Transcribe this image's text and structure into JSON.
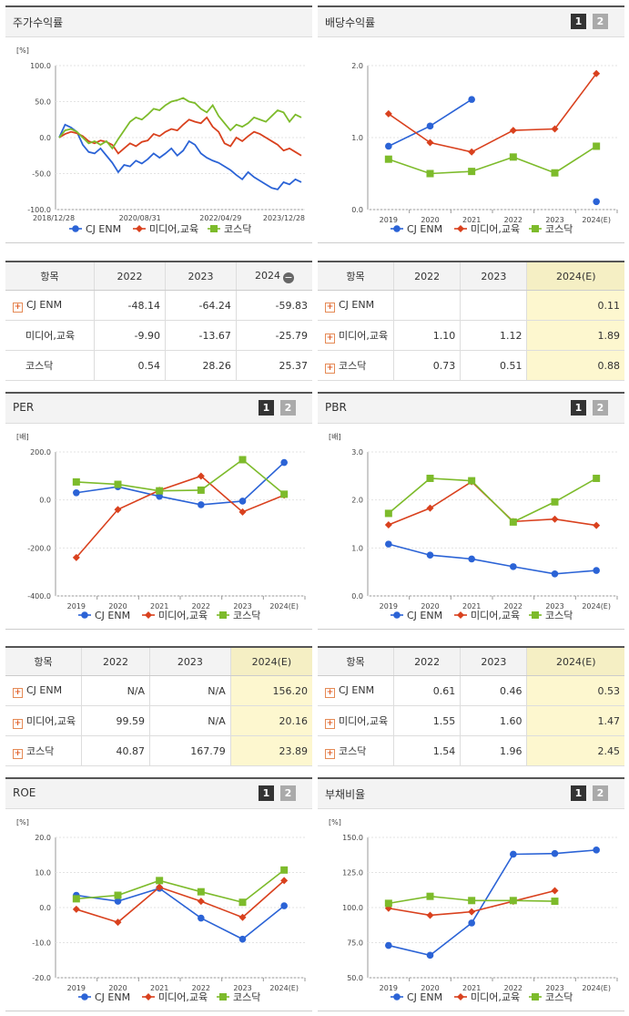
{
  "colors": {
    "cj": "#2b63d6",
    "media": "#d9411e",
    "kosdaq": "#7dbb2b"
  },
  "panels": {
    "stock_return": {
      "title": "주가수익률",
      "unit": "[%]"
    },
    "dividend": {
      "title": "배당수익률",
      "pages": [
        "1",
        "2"
      ]
    },
    "per": {
      "title": "PER",
      "unit": "[배]",
      "pages": [
        "1",
        "2"
      ]
    },
    "pbr": {
      "title": "PBR",
      "unit": "[배]",
      "pages": [
        "1",
        "2"
      ]
    },
    "roe": {
      "title": "ROE",
      "unit": "[%]",
      "pages": [
        "1",
        "2"
      ]
    },
    "debt": {
      "title": "부채비율",
      "unit": "[%]",
      "pages": [
        "1",
        "2"
      ]
    }
  },
  "legend": [
    "CJ ENM",
    "미디어,교육",
    "코스닥"
  ],
  "chart_data": [
    {
      "id": "stock_return",
      "type": "line",
      "x_ticks": [
        "2018/12/28",
        "2020/08/31",
        "2022/04/29",
        "2023/12/28"
      ],
      "y_ticks": [
        "100.0",
        "50.0",
        "0.0",
        "-50.0",
        "-100.0"
      ],
      "ylim": [
        -100,
        100
      ],
      "series": [
        {
          "name": "CJ ENM",
          "values": [
            0,
            18,
            14,
            8,
            -10,
            -20,
            -22,
            -15,
            -25,
            -35,
            -48,
            -38,
            -40,
            -32,
            -36,
            -30,
            -22,
            -28,
            -22,
            -15,
            -25,
            -18,
            -5,
            -10,
            -22,
            -28,
            -32,
            -35,
            -40,
            -45,
            -52,
            -58,
            -48,
            -55,
            -60,
            -65,
            -70,
            -72,
            -62,
            -65,
            -58,
            -62
          ]
        },
        {
          "name": "미디어,교육",
          "values": [
            0,
            5,
            8,
            6,
            2,
            -5,
            -8,
            -4,
            -6,
            -10,
            -22,
            -15,
            -8,
            -12,
            -6,
            -4,
            5,
            2,
            8,
            12,
            10,
            18,
            25,
            22,
            20,
            28,
            15,
            8,
            -8,
            -12,
            0,
            -5,
            2,
            8,
            5,
            0,
            -5,
            -10,
            -18,
            -15,
            -20,
            -25
          ]
        },
        {
          "name": "코스닥",
          "values": [
            0,
            10,
            12,
            8,
            0,
            -8,
            -5,
            -10,
            -5,
            -15,
            -2,
            10,
            22,
            28,
            25,
            32,
            40,
            38,
            45,
            50,
            52,
            55,
            50,
            48,
            40,
            35,
            45,
            30,
            20,
            10,
            18,
            15,
            20,
            28,
            25,
            22,
            30,
            38,
            35,
            22,
            32,
            28
          ]
        }
      ]
    },
    {
      "id": "dividend",
      "type": "line",
      "categories": [
        "2019",
        "2020",
        "2021",
        "2022",
        "2023",
        "2024(E)"
      ],
      "y_ticks": [
        "2.0",
        "1.0",
        "0.0"
      ],
      "ylim": [
        0,
        2
      ],
      "series": [
        {
          "name": "CJ ENM",
          "values": [
            0.88,
            1.16,
            1.53,
            null,
            null,
            0.11
          ]
        },
        {
          "name": "미디어,교육",
          "values": [
            1.33,
            0.93,
            0.8,
            1.1,
            1.12,
            1.89
          ]
        },
        {
          "name": "코스닥",
          "values": [
            0.7,
            0.5,
            0.53,
            0.73,
            0.51,
            0.88
          ]
        }
      ]
    },
    {
      "id": "per",
      "type": "line",
      "categories": [
        "2019",
        "2020",
        "2021",
        "2022",
        "2023",
        "2024(E)"
      ],
      "y_ticks": [
        "200.0",
        "0.0",
        "-200.0",
        "-400.0"
      ],
      "ylim": [
        -400,
        200
      ],
      "series": [
        {
          "name": "CJ ENM",
          "values": [
            30,
            55,
            15,
            -20,
            -5,
            156.2
          ]
        },
        {
          "name": "미디어,교육",
          "values": [
            -240,
            -40,
            40,
            99.59,
            -50,
            20.16
          ]
        },
        {
          "name": "코스닥",
          "values": [
            75,
            65,
            38,
            40.87,
            167.79,
            23.89
          ]
        }
      ]
    },
    {
      "id": "pbr",
      "type": "line",
      "categories": [
        "2019",
        "2020",
        "2021",
        "2022",
        "2023",
        "2024(E)"
      ],
      "y_ticks": [
        "3.0",
        "2.0",
        "1.0",
        "0.0"
      ],
      "ylim": [
        0,
        3
      ],
      "series": [
        {
          "name": "CJ ENM",
          "values": [
            1.08,
            0.85,
            0.77,
            0.61,
            0.46,
            0.53
          ]
        },
        {
          "name": "미디어,교육",
          "values": [
            1.48,
            1.83,
            2.38,
            1.55,
            1.6,
            1.47
          ]
        },
        {
          "name": "코스닥",
          "values": [
            1.72,
            2.45,
            2.4,
            1.54,
            1.96,
            2.45
          ]
        }
      ]
    },
    {
      "id": "roe",
      "type": "line",
      "categories": [
        "2019",
        "2020",
        "2021",
        "2022",
        "2023",
        "2024(E)"
      ],
      "y_ticks": [
        "20.0",
        "10.0",
        "0.0",
        "-10.0",
        "-20.0"
      ],
      "ylim": [
        -20,
        20
      ],
      "series": [
        {
          "name": "CJ ENM",
          "values": [
            3.5,
            1.8,
            5.5,
            -3.0,
            -9.0,
            0.5
          ]
        },
        {
          "name": "미디어,교육",
          "values": [
            -0.5,
            -4.2,
            5.8,
            1.8,
            -2.8,
            7.7
          ]
        },
        {
          "name": "코스닥",
          "values": [
            2.5,
            3.5,
            7.7,
            4.5,
            1.5,
            10.7
          ]
        }
      ]
    },
    {
      "id": "debt",
      "type": "line",
      "categories": [
        "2019",
        "2020",
        "2021",
        "2022",
        "2023",
        "2024(E)"
      ],
      "y_ticks": [
        "150.0",
        "125.0",
        "100.0",
        "75.0",
        "50.0"
      ],
      "ylim": [
        50,
        150
      ],
      "series": [
        {
          "name": "CJ ENM",
          "values": [
            73,
            66,
            89,
            138,
            138.5,
            141
          ]
        },
        {
          "name": "미디어,교육",
          "values": [
            99.5,
            94.5,
            97,
            104.5,
            112,
            null
          ]
        },
        {
          "name": "코스닥",
          "values": [
            103,
            108,
            105,
            105,
            104.5,
            null
          ]
        }
      ]
    }
  ],
  "tables": {
    "stock_return": {
      "headers": [
        "항목",
        "2022",
        "2023",
        "2024"
      ],
      "rows": [
        {
          "name": "CJ ENM",
          "plus": true,
          "values": [
            "-48.14",
            "-64.24",
            "-59.83"
          ]
        },
        {
          "name": "미디어,교육",
          "plus": false,
          "values": [
            "-9.90",
            "-13.67",
            "-25.79"
          ]
        },
        {
          "name": "코스닥",
          "plus": false,
          "values": [
            "0.54",
            "28.26",
            "25.37"
          ]
        }
      ]
    },
    "dividend": {
      "headers": [
        "항목",
        "2022",
        "2023",
        "2024(E)"
      ],
      "rows": [
        {
          "name": "CJ ENM",
          "plus": true,
          "values": [
            "",
            "",
            "0.11"
          ]
        },
        {
          "name": "미디어,교육",
          "plus": true,
          "values": [
            "1.10",
            "1.12",
            "1.89"
          ]
        },
        {
          "name": "코스닥",
          "plus": true,
          "values": [
            "0.73",
            "0.51",
            "0.88"
          ]
        }
      ]
    },
    "per": {
      "headers": [
        "항목",
        "2022",
        "2023",
        "2024(E)"
      ],
      "rows": [
        {
          "name": "CJ ENM",
          "plus": true,
          "values": [
            "N/A",
            "N/A",
            "156.20"
          ]
        },
        {
          "name": "미디어,교육",
          "plus": true,
          "values": [
            "99.59",
            "N/A",
            "20.16"
          ]
        },
        {
          "name": "코스닥",
          "plus": true,
          "values": [
            "40.87",
            "167.79",
            "23.89"
          ]
        }
      ]
    },
    "pbr": {
      "headers": [
        "항목",
        "2022",
        "2023",
        "2024(E)"
      ],
      "rows": [
        {
          "name": "CJ ENM",
          "plus": true,
          "values": [
            "0.61",
            "0.46",
            "0.53"
          ]
        },
        {
          "name": "미디어,교육",
          "plus": true,
          "values": [
            "1.55",
            "1.60",
            "1.47"
          ]
        },
        {
          "name": "코스닥",
          "plus": true,
          "values": [
            "1.54",
            "1.96",
            "2.45"
          ]
        }
      ]
    }
  }
}
